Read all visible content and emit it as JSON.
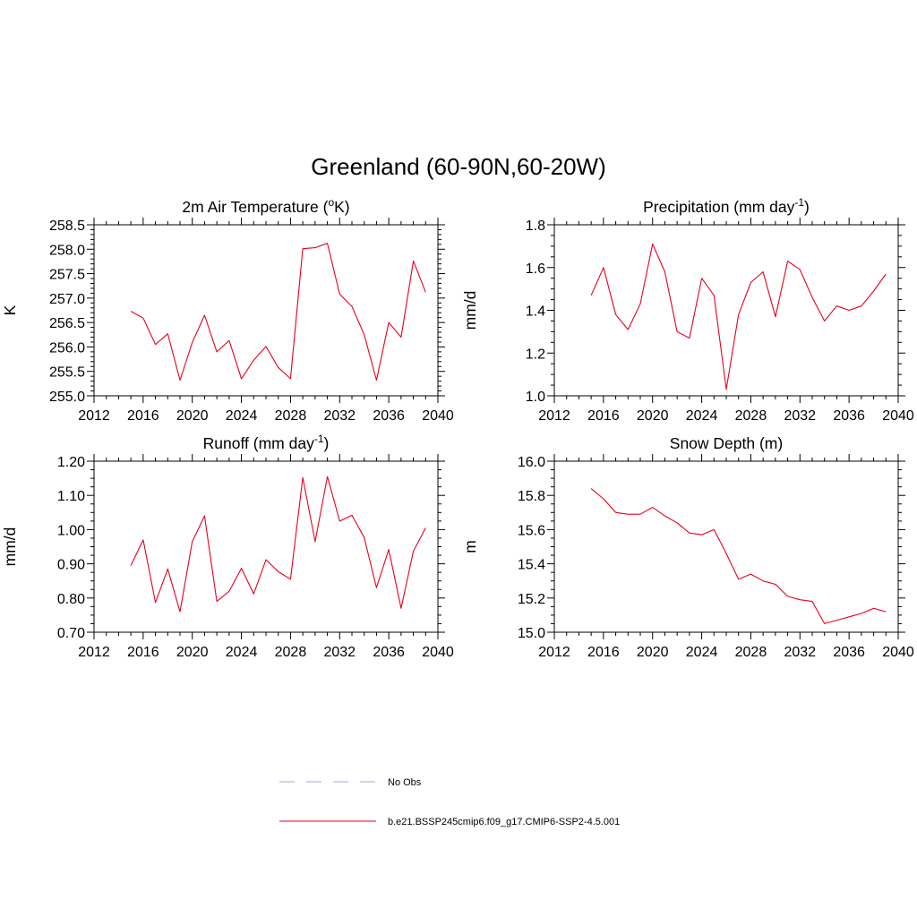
{
  "figure": {
    "title": "Greenland (60-90N,60-20W)"
  },
  "colors": {
    "series": "#e8001c",
    "obs": "#a6a6e6",
    "axis": "#000000"
  },
  "legend": {
    "placement": "bottom-center",
    "entries": [
      {
        "label": "No Obs",
        "style": "dashed",
        "color": "#a6a6e6"
      },
      {
        "label": "b.e21.BSSP245cmip6.f09_g17.CMIP6-SSP2-4.5.001",
        "style": "solid",
        "color": "#e8001c"
      }
    ]
  },
  "chart_data": [
    {
      "type": "line",
      "title": "2m Air Temperature (",
      "title_sup": "o",
      "title_after": "K)",
      "title_tail": "",
      "ylabel": "K",
      "xlim": [
        2012,
        2040
      ],
      "xticks": [
        "2012",
        "2016",
        "2020",
        "2024",
        "2028",
        "2032",
        "2036",
        "2040"
      ],
      "ylim": [
        255.0,
        258.5
      ],
      "yticks": [
        "255.0",
        "255.5",
        "256.0",
        "256.5",
        "257.0",
        "257.5",
        "258.0",
        "258.5"
      ],
      "x": [
        2015,
        2016,
        2017,
        2018,
        2019,
        2020,
        2021,
        2022,
        2023,
        2024,
        2025,
        2026,
        2027,
        2028,
        2029,
        2030,
        2031,
        2032,
        2033,
        2034,
        2035,
        2036,
        2037,
        2038,
        2039
      ],
      "series": [
        {
          "name": "b.e21.BSSP245cmip6.f09_g17.CMIP6-SSP2-4.5.001",
          "values": [
            256.73,
            256.59,
            256.05,
            256.27,
            255.32,
            256.09,
            256.65,
            255.9,
            256.13,
            255.35,
            255.73,
            256.01,
            255.58,
            255.35,
            258.01,
            258.03,
            258.12,
            257.08,
            256.83,
            256.25,
            255.32,
            256.5,
            256.2,
            257.76,
            257.12
          ]
        }
      ]
    },
    {
      "type": "line",
      "title": "Precipitation (mm day",
      "title_sup": "-1",
      "title_after": ")",
      "ylabel": "mm/d",
      "xlim": [
        2012,
        2040
      ],
      "xticks": [
        "2012",
        "2016",
        "2020",
        "2024",
        "2028",
        "2032",
        "2036",
        "2040"
      ],
      "ylim": [
        1.0,
        1.8
      ],
      "yticks": [
        "1.0",
        "1.2",
        "1.4",
        "1.6",
        "1.8"
      ],
      "x": [
        2015,
        2016,
        2017,
        2018,
        2019,
        2020,
        2021,
        2022,
        2023,
        2024,
        2025,
        2026,
        2027,
        2028,
        2029,
        2030,
        2031,
        2032,
        2033,
        2034,
        2035,
        2036,
        2037,
        2038,
        2039
      ],
      "series": [
        {
          "name": "b.e21.BSSP245cmip6.f09_g17.CMIP6-SSP2-4.5.001",
          "values": [
            1.47,
            1.6,
            1.38,
            1.31,
            1.43,
            1.71,
            1.58,
            1.3,
            1.27,
            1.55,
            1.47,
            1.03,
            1.38,
            1.53,
            1.58,
            1.37,
            1.63,
            1.59,
            1.46,
            1.35,
            1.42,
            1.4,
            1.42,
            1.49,
            1.57
          ]
        }
      ]
    },
    {
      "type": "line",
      "title": "Runoff (mm day",
      "title_sup": "-1",
      "title_after": ")",
      "ylabel": "mm/d",
      "xlim": [
        2012,
        2040
      ],
      "xticks": [
        "2012",
        "2016",
        "2020",
        "2024",
        "2028",
        "2032",
        "2036",
        "2040"
      ],
      "ylim": [
        0.7,
        1.2
      ],
      "yticks": [
        "0.70",
        "0.80",
        "0.90",
        "1.00",
        "1.10",
        "1.20"
      ],
      "x": [
        2015,
        2016,
        2017,
        2018,
        2019,
        2020,
        2021,
        2022,
        2023,
        2024,
        2025,
        2026,
        2027,
        2028,
        2029,
        2030,
        2031,
        2032,
        2033,
        2034,
        2035,
        2036,
        2037,
        2038,
        2039
      ],
      "series": [
        {
          "name": "b.e21.BSSP245cmip6.f09_g17.CMIP6-SSP2-4.5.001",
          "values": [
            0.895,
            0.97,
            0.787,
            0.885,
            0.76,
            0.965,
            1.04,
            0.79,
            0.82,
            0.887,
            0.812,
            0.912,
            0.877,
            0.855,
            1.152,
            0.965,
            1.155,
            1.025,
            1.042,
            0.977,
            0.83,
            0.942,
            0.77,
            0.937,
            1.005
          ]
        }
      ]
    },
    {
      "type": "line",
      "title": "Snow Depth (m)",
      "title_sup": "",
      "title_after": "",
      "ylabel": "m",
      "xlim": [
        2012,
        2040
      ],
      "xticks": [
        "2012",
        "2016",
        "2020",
        "2024",
        "2028",
        "2032",
        "2036",
        "2040"
      ],
      "ylim": [
        15.0,
        16.0
      ],
      "yticks": [
        "15.0",
        "15.2",
        "15.4",
        "15.6",
        "15.8",
        "16.0"
      ],
      "x": [
        2015,
        2016,
        2017,
        2018,
        2019,
        2020,
        2021,
        2022,
        2023,
        2024,
        2025,
        2026,
        2027,
        2028,
        2029,
        2030,
        2031,
        2032,
        2033,
        2034,
        2035,
        2036,
        2037,
        2038,
        2039
      ],
      "series": [
        {
          "name": "b.e21.BSSP245cmip6.f09_g17.CMIP6-SSP2-4.5.001",
          "values": [
            15.84,
            15.78,
            15.7,
            15.69,
            15.69,
            15.73,
            15.68,
            15.64,
            15.58,
            15.57,
            15.6,
            15.46,
            15.31,
            15.34,
            15.3,
            15.28,
            15.21,
            15.19,
            15.18,
            15.05,
            15.07,
            15.09,
            15.11,
            15.14,
            15.12
          ]
        }
      ]
    }
  ]
}
